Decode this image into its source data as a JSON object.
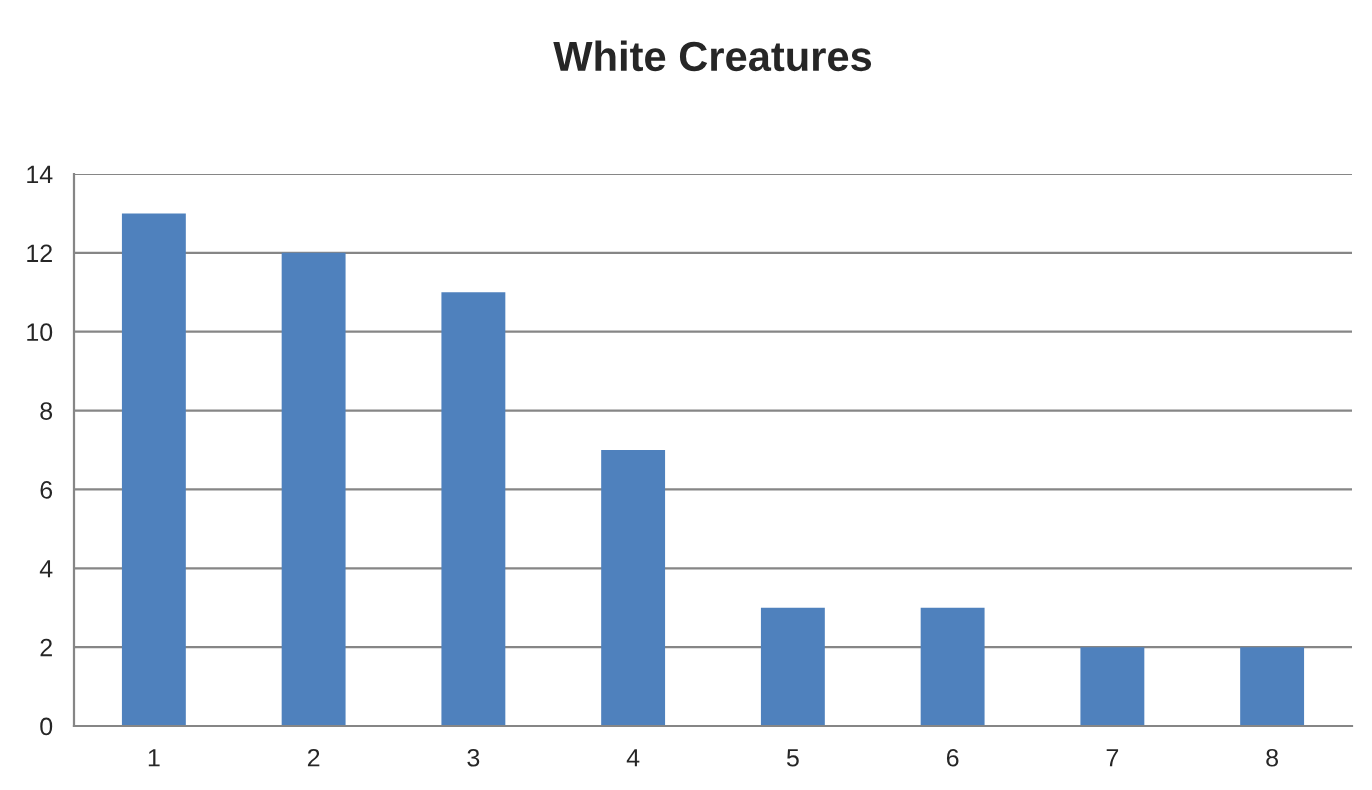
{
  "chart_data": {
    "type": "bar",
    "title": "White Creatures",
    "categories": [
      "1",
      "2",
      "3",
      "4",
      "5",
      "6",
      "7",
      "8"
    ],
    "values": [
      13,
      12,
      11,
      7,
      3,
      3,
      2,
      2
    ],
    "color": "#4f81bd",
    "ylim": [
      0,
      14
    ],
    "yticks": [
      0,
      2,
      4,
      6,
      8,
      10,
      12,
      14
    ],
    "grid": "y",
    "legend": false
  }
}
